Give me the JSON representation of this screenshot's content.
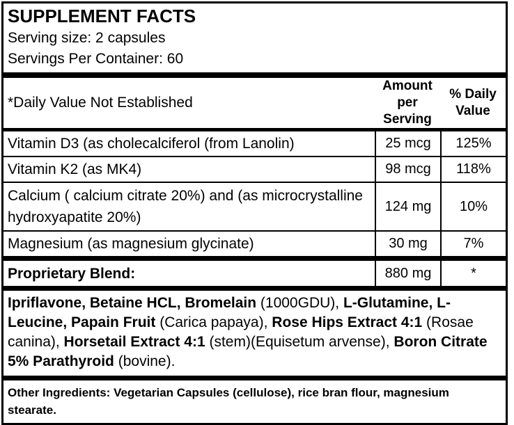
{
  "colors": {
    "text": "#000000",
    "border": "#000000",
    "background": "#ffffff"
  },
  "label": {
    "title": "SUPPLEMENT FACTS",
    "serving_size": "Serving size: 2 capsules",
    "servings_per_container": "Servings Per Container: 60"
  },
  "facts_table": {
    "daily_value_note": "*Daily Value Not Established",
    "columns": {
      "amount": {
        "line1": "Amount",
        "line2": "per Serving"
      },
      "daily_value": {
        "line1": "% Daily",
        "line2": "Value"
      }
    },
    "rows": [
      {
        "name": "Vitamin D3 (as cholecalciferol (from Lanolin)",
        "amount": "25 mcg",
        "daily_value": "125%"
      },
      {
        "name": "Vitamin K2 (as MK4)",
        "amount": "98 mcg",
        "daily_value": "118%"
      },
      {
        "name": "Calcium ( calcium citrate 20%) and (as microcrystalline hydroxyapatite 20%)",
        "amount": "124 mg",
        "daily_value": "10%"
      },
      {
        "name": "Magnesium (as magnesium glycinate)",
        "amount": "30 mg",
        "daily_value": "7%"
      }
    ],
    "proprietary_blend": {
      "name": "Proprietary Blend:",
      "amount": "880 mg",
      "daily_value": "*"
    }
  },
  "blend_ingredients": {
    "segments": [
      {
        "text": "Ipriflavone, Betaine HCL, Bromelain ",
        "bold": true
      },
      {
        "text": "(1000GDU), ",
        "bold": false
      },
      {
        "text": "L-Glutamine, L-Leucine, Papain Fruit ",
        "bold": true
      },
      {
        "text": "(Carica papaya), ",
        "bold": false
      },
      {
        "text": "Rose Hips Extract 4:1 ",
        "bold": true
      },
      {
        "text": "(Rosae canina), ",
        "bold": false
      },
      {
        "text": "Horsetail Extract 4:1 ",
        "bold": true
      },
      {
        "text": "(stem)(Equisetum arvense), ",
        "bold": false
      },
      {
        "text": "Boron Citrate 5% Parathyroid ",
        "bold": true
      },
      {
        "text": "(bovine).",
        "bold": false
      }
    ]
  },
  "other_ingredients": "Other Ingredients: Vegetarian Capsules (cellulose), rice bran flour, magnesium stearate."
}
